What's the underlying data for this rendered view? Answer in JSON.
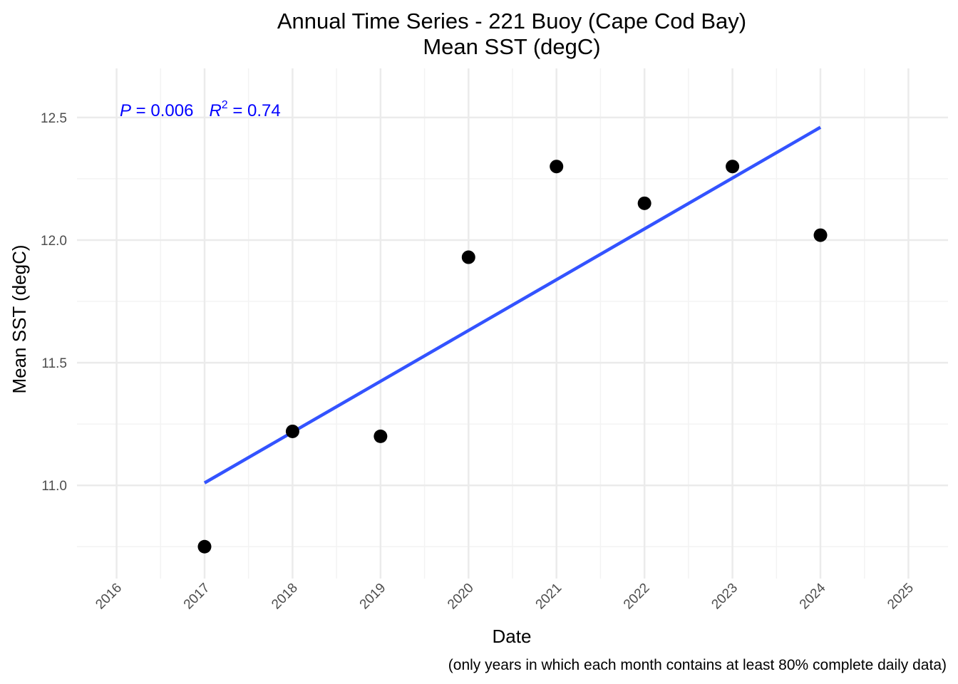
{
  "chart_data": {
    "type": "scatter",
    "title": "Annual Time Series - 221 Buoy (Cape Cod Bay)",
    "subtitle": "Mean SST (degC)",
    "xlabel": "Date",
    "ylabel": "Mean SST (degC)",
    "caption": "(only years in which each month contains at least 80% complete daily data)",
    "xlim": [
      2016,
      2025
    ],
    "ylim": [
      10.62,
      12.7
    ],
    "x_ticks": [
      "2016",
      "2017",
      "2018",
      "2019",
      "2020",
      "2021",
      "2022",
      "2023",
      "2024",
      "2025"
    ],
    "y_ticks": [
      "11.0",
      "11.5",
      "12.0",
      "12.5"
    ],
    "points": [
      {
        "x": 2017,
        "y": 10.75
      },
      {
        "x": 2018,
        "y": 11.22
      },
      {
        "x": 2019,
        "y": 11.2
      },
      {
        "x": 2020,
        "y": 11.93
      },
      {
        "x": 2021,
        "y": 12.3
      },
      {
        "x": 2022,
        "y": 12.15
      },
      {
        "x": 2023,
        "y": 12.3
      },
      {
        "x": 2024,
        "y": 12.02
      }
    ],
    "trend": {
      "x": [
        2017,
        2024
      ],
      "y": [
        11.01,
        12.46
      ]
    },
    "annotation": {
      "p_label": "P",
      "p_text": " = 0.006",
      "r_label": "R",
      "r_sup": "2",
      "r_text": " = 0.74"
    },
    "grid": true,
    "colors": {
      "points": "#000000",
      "trend": "#3353ff",
      "annotation": "#0000ff",
      "grid": "#ebebeb"
    }
  }
}
